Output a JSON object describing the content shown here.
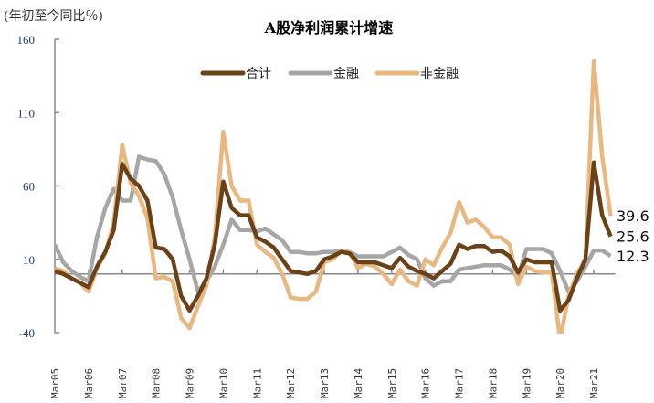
{
  "chart_data": {
    "type": "line",
    "title": "A股净利润累计增速",
    "ylabel": "(年初至今同比％)",
    "ylim": [
      -40,
      160
    ],
    "yticks": [
      160,
      110,
      60,
      10,
      -40
    ],
    "xtick_labels": [
      "Mar05",
      "Mar06",
      "Mar07",
      "Mar08",
      "Mar09",
      "Mar10",
      "Mar11",
      "Mar12",
      "Mar13",
      "Mar14",
      "Mar15",
      "Mar16",
      "Mar17",
      "Mar18",
      "Mar19",
      "Mar20",
      "Mar21"
    ],
    "x_frequency": "quarterly, Mar05 to Sep21",
    "legend_position": "top-center",
    "series": [
      {
        "name": "合计",
        "color": "#6B4118",
        "end_label": "25.6",
        "values": [
          2,
          0,
          -3,
          -6,
          -9,
          5,
          15,
          30,
          75,
          65,
          60,
          50,
          18,
          17,
          10,
          -15,
          -25,
          -15,
          -3,
          20,
          63,
          45,
          40,
          40,
          25,
          22,
          18,
          10,
          2,
          1,
          0,
          2,
          10,
          12,
          15,
          14,
          8,
          8,
          8,
          6,
          4,
          11,
          5,
          2,
          0,
          -3,
          2,
          7,
          20,
          17,
          19,
          19,
          15,
          16,
          12,
          1,
          10,
          8,
          8,
          8,
          -25,
          -18,
          -3,
          10,
          76,
          40,
          25.6
        ]
      },
      {
        "name": "金融",
        "color": "#A6A6A6",
        "end_label": "12.3",
        "values": [
          20,
          8,
          2,
          -2,
          -5,
          25,
          45,
          58,
          50,
          50,
          80,
          78,
          77,
          68,
          52,
          30,
          10,
          -12,
          -5,
          5,
          20,
          37,
          30,
          30,
          29,
          31,
          27,
          23,
          15,
          15,
          14,
          14,
          15,
          15,
          16,
          15,
          12,
          12,
          12,
          12,
          15,
          18,
          13,
          10,
          -3,
          -8,
          -5,
          -5,
          3,
          4,
          5,
          6,
          6,
          6,
          3,
          -2,
          17,
          17,
          17,
          14,
          2,
          -12,
          -5,
          5,
          16,
          16,
          12.3
        ]
      },
      {
        "name": "非金融",
        "color": "#E8B880",
        "end_label": "39.6",
        "values": [
          4,
          2,
          -3,
          -6,
          -12,
          4,
          14,
          35,
          88,
          62,
          53,
          38,
          -3,
          -2,
          -5,
          -30,
          -37,
          -22,
          -8,
          25,
          97,
          60,
          50,
          50,
          20,
          15,
          11,
          0,
          -16,
          -17,
          -17,
          -12,
          8,
          10,
          16,
          15,
          4,
          7,
          5,
          0,
          -7,
          3,
          -5,
          -8,
          10,
          6,
          18,
          28,
          49,
          35,
          37,
          32,
          25,
          25,
          20,
          -7,
          5,
          2,
          1,
          1,
          -45,
          -15,
          0,
          10,
          145,
          80,
          39.6
        ]
      }
    ]
  }
}
